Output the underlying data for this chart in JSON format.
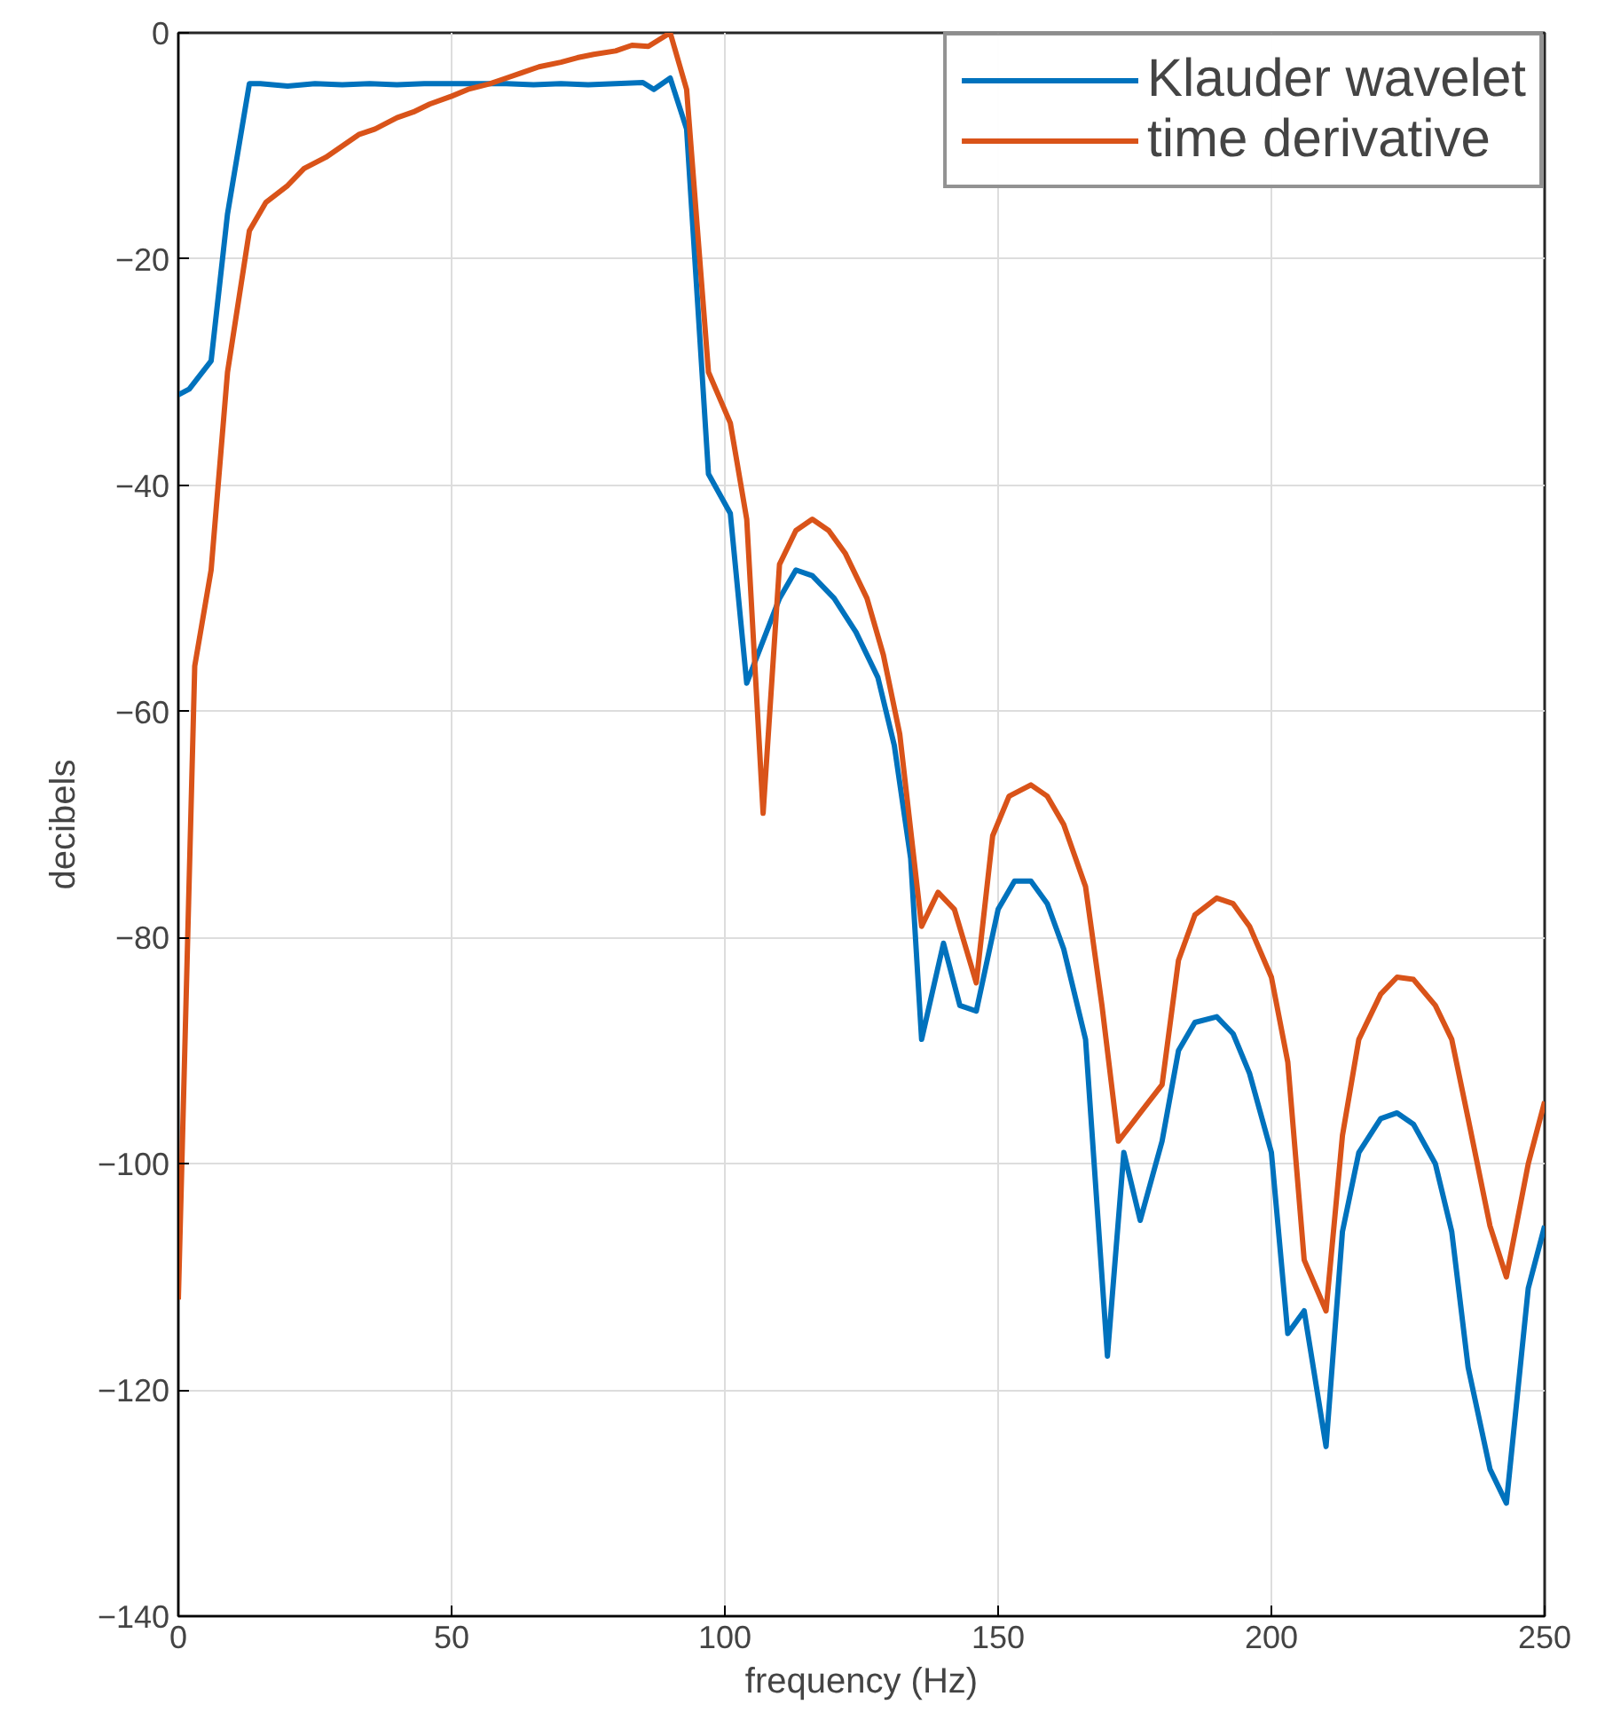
{
  "chart_data": {
    "type": "line",
    "xlabel": "frequency (Hz)",
    "ylabel": "decibels",
    "xlim": [
      0,
      250
    ],
    "ylim": [
      -140,
      0
    ],
    "xticks": [
      0,
      50,
      100,
      150,
      200,
      250
    ],
    "yticks": [
      -140,
      -120,
      -100,
      -80,
      -60,
      -40,
      -20,
      0
    ],
    "grid": true,
    "legend": "top right",
    "line_style": "solid",
    "series": [
      {
        "name": "Klauder wavelet",
        "color": "#0072bd",
        "x": [
          0,
          2,
          6,
          9,
          13,
          15,
          20,
          25,
          30,
          35,
          40,
          45,
          50,
          55,
          60,
          65,
          70,
          75,
          80,
          85,
          87,
          90,
          93,
          97,
          101,
          104,
          110,
          113,
          116,
          120,
          124,
          128,
          131,
          134,
          136,
          140,
          143,
          146,
          150,
          153,
          156,
          159,
          162,
          166,
          170,
          173,
          176,
          180,
          183,
          186,
          190,
          193,
          196,
          200,
          203,
          206,
          210,
          213,
          216,
          220,
          223,
          226,
          230,
          233,
          236,
          240,
          243,
          247,
          250
        ],
        "values": [
          -32,
          -31.5,
          -29,
          -16,
          -4.5,
          -4.5,
          -4.7,
          -4.5,
          -4.6,
          -4.5,
          -4.6,
          -4.5,
          -4.5,
          -4.5,
          -4.5,
          -4.6,
          -4.5,
          -4.6,
          -4.5,
          -4.4,
          -5,
          -4,
          -8.5,
          -39,
          -42.5,
          -57.5,
          -50,
          -47.5,
          -48,
          -50,
          -53,
          -57,
          -63,
          -73,
          -89,
          -80.5,
          -86,
          -86.5,
          -77.5,
          -75,
          -75,
          -77,
          -81,
          -89,
          -117,
          -99,
          -105,
          -98,
          -90,
          -87.5,
          -87,
          -88.5,
          -92,
          -99,
          -115,
          -113,
          -125,
          -106,
          -99,
          -96,
          -95.5,
          -96.5,
          -100,
          -106,
          -118,
          -127,
          -130,
          -111,
          -105.5
        ]
      },
      {
        "name": "time derivative",
        "color": "#d95319",
        "x": [
          0,
          3,
          6,
          9,
          13,
          16,
          20,
          23,
          27,
          30,
          33,
          36,
          40,
          43,
          46,
          50,
          53,
          57,
          60,
          63,
          66,
          70,
          73,
          76,
          80,
          83,
          86,
          90,
          93,
          97,
          101,
          104,
          107,
          110,
          113,
          116,
          119,
          122,
          126,
          129,
          132,
          136,
          139,
          142,
          146,
          149,
          152,
          156,
          159,
          162,
          166,
          169,
          172,
          176,
          180,
          183,
          186,
          190,
          193,
          196,
          200,
          203,
          206,
          210,
          213,
          216,
          220,
          223,
          226,
          230,
          233,
          236,
          240,
          243,
          247,
          250
        ],
        "values": [
          -112,
          -56,
          -47.5,
          -30,
          -17.5,
          -15,
          -13.5,
          -12,
          -11,
          -10,
          -9,
          -8.5,
          -7.5,
          -7,
          -6.3,
          -5.6,
          -5,
          -4.5,
          -4,
          -3.5,
          -3,
          -2.6,
          -2.2,
          -1.9,
          -1.6,
          -1.1,
          -1.2,
          0,
          -5,
          -30,
          -34.5,
          -43,
          -69,
          -47,
          -44,
          -43,
          -44,
          -46,
          -50,
          -55,
          -62,
          -79,
          -76,
          -77.5,
          -84,
          -71,
          -67.5,
          -66.5,
          -67.5,
          -70,
          -75.5,
          -86,
          -98,
          -95.5,
          -93,
          -82,
          -78,
          -76.5,
          -77,
          -79,
          -83.5,
          -91,
          -108.5,
          -113,
          -97.5,
          -89,
          -85,
          -83.5,
          -83.7,
          -86,
          -89,
          -96,
          -105.5,
          -110,
          -100,
          -94.5
        ]
      }
    ]
  }
}
